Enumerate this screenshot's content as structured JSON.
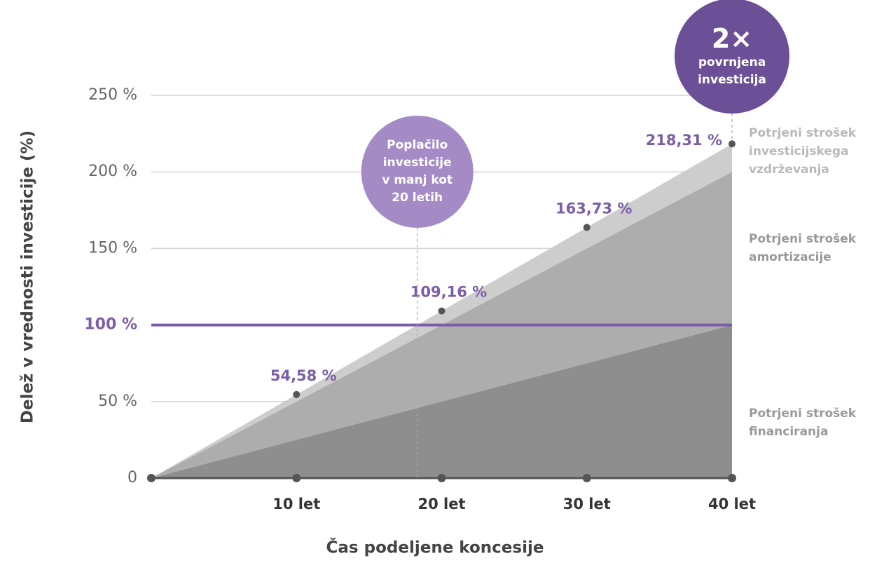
{
  "chart_data": {
    "type": "stacked_area",
    "x_label": "Čas podeljene koncesije",
    "y_label": "Delež v vrednosti investicije (%)",
    "x": [
      0,
      10,
      20,
      30,
      40
    ],
    "xlim": [
      0,
      40
    ],
    "xticks": [
      {
        "value": 10,
        "label": "10 let"
      },
      {
        "value": 20,
        "label": "20 let"
      },
      {
        "value": 30,
        "label": "30 let"
      },
      {
        "value": 40,
        "label": "40 let"
      }
    ],
    "ylim": [
      0,
      250
    ],
    "yticks": [
      0,
      {
        "value": 50,
        "label": "50 %"
      },
      {
        "value": 100,
        "label": "100 %"
      },
      {
        "value": 150,
        "label": "150 %"
      },
      {
        "value": 200,
        "label": "200 %"
      },
      {
        "value": 250,
        "label": "250 %"
      }
    ],
    "grid": true,
    "series": [
      {
        "name": "Potrjeni strošek financiranja",
        "color": "#8e8e8e",
        "label_color": "#9a9a9a",
        "values": [
          0,
          25,
          50,
          75,
          100
        ]
      },
      {
        "name": "Potrjeni strošek amortizacije",
        "color": "#adadad",
        "label_color": "#9a9a9a",
        "values": [
          0,
          25,
          50,
          75,
          100
        ]
      },
      {
        "name": "Potrjeni strošek investicijskega vzdrževanja",
        "color": "#cdcdcd",
        "label_color": "#b9b9b9",
        "values": [
          0,
          4.58,
          9.16,
          13.73,
          18.31
        ]
      }
    ],
    "totals": {
      "x": [
        10,
        20,
        30,
        40
      ],
      "values": [
        54.58,
        109.16,
        163.73,
        218.31
      ],
      "value_labels": [
        "54,58 %",
        "109,16 %",
        "163,73 %",
        "218,31 %"
      ]
    },
    "reference_line": {
      "value": 100,
      "color": "#7b5ea7"
    },
    "callouts": [
      {
        "x": 18.32,
        "text": "Poplačilo investicije v manj kot 20 letih",
        "color": "#a48bc6"
      },
      {
        "x": 40,
        "headline": "2×",
        "text": "povrnjena investicija",
        "color": "#6b4f97"
      }
    ]
  }
}
